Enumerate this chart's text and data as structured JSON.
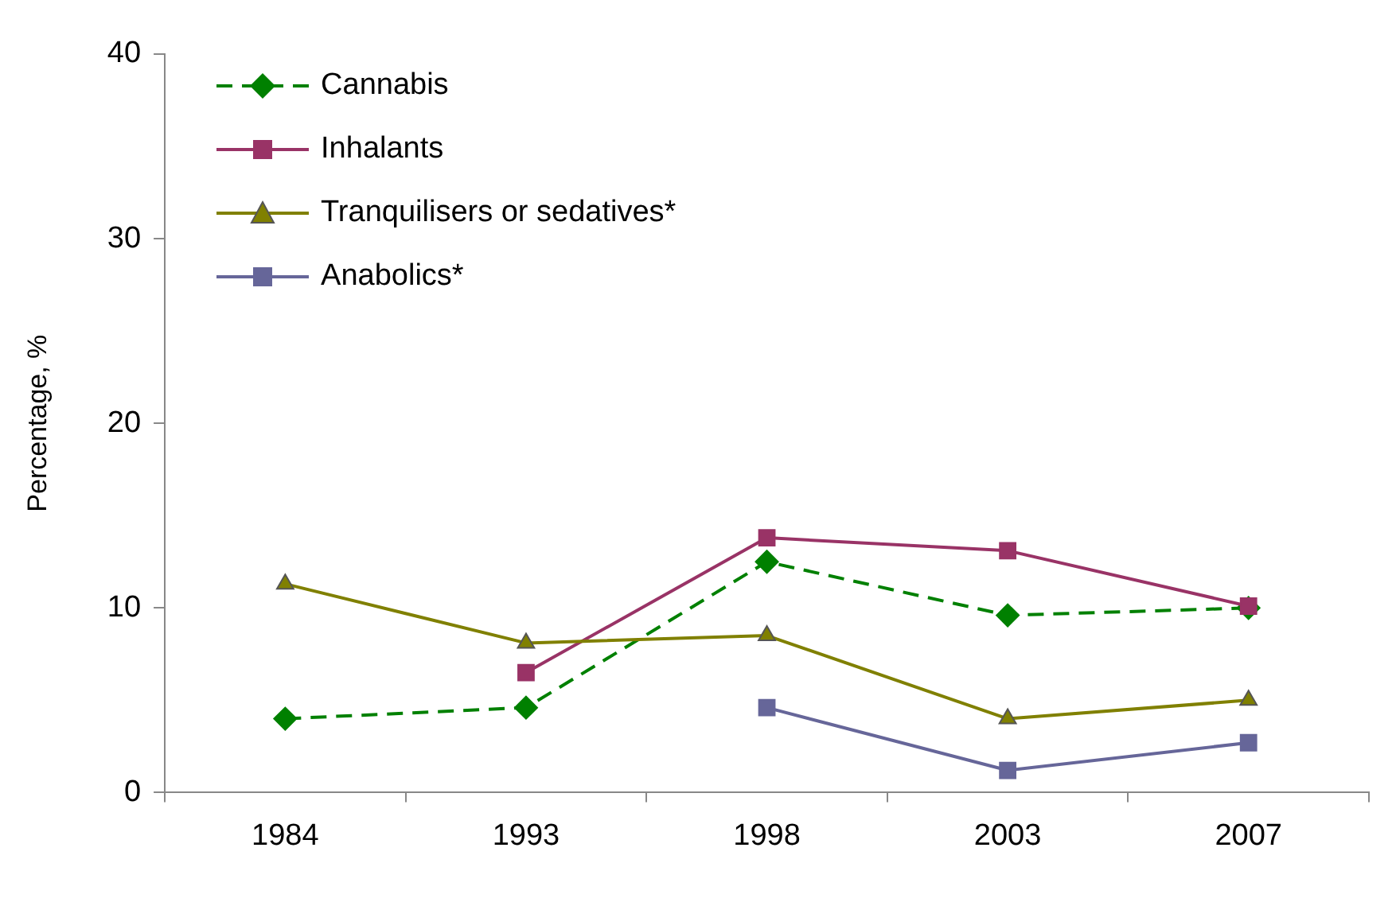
{
  "chart_data": {
    "type": "line",
    "ylabel": "Percentage, %",
    "categories": [
      "1984",
      "1993",
      "1998",
      "2003",
      "2007"
    ],
    "ylim": [
      0,
      40
    ],
    "yticks": [
      0,
      10,
      20,
      30,
      40
    ],
    "grid": false,
    "legend": "top left",
    "series": [
      {
        "name": "Cannabis",
        "color": "#008000",
        "marker": "diamond",
        "line_style": "dashed",
        "values": [
          4.0,
          4.6,
          12.5,
          9.6,
          10.0
        ]
      },
      {
        "name": "Inhalants",
        "color": "#993366",
        "marker": "square",
        "line_style": "solid",
        "values": [
          null,
          6.5,
          13.8,
          13.1,
          10.1
        ]
      },
      {
        "name": "Tranquilisers or sedatives*",
        "color": "#808000",
        "marker": "triangle",
        "line_style": "solid",
        "values": [
          11.3,
          8.1,
          8.5,
          4.0,
          5.0
        ]
      },
      {
        "name": "Anabolics*",
        "color": "#666699",
        "marker": "square",
        "line_style": "solid",
        "values": [
          null,
          null,
          4.6,
          1.2,
          2.7
        ]
      }
    ]
  }
}
